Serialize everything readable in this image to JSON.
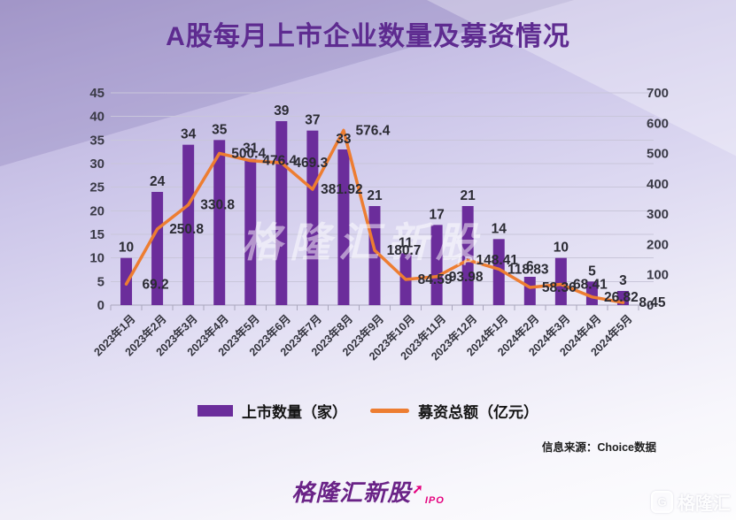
{
  "title": "A股每月上市企业数量及募资情况",
  "source_note": "信息来源：Choice数据",
  "watermarks": {
    "center_text": "格隆汇新股",
    "center_sub": "IPO",
    "corner_icon": "G",
    "corner_text": "格隆汇"
  },
  "footer": {
    "brand": "格隆汇新股",
    "arrow_icon": "➚",
    "brand_sub": "IPO"
  },
  "colors": {
    "bar": "#6B2D9B",
    "line": "#ED7D31",
    "title": "#5E2B90",
    "accent_pink": "#E4017E"
  },
  "chart_data": {
    "type": "bar+line",
    "title": "A股每月上市企业数量及募资情况",
    "categories": [
      "2023年1月",
      "2023年2月",
      "2023年3月",
      "2023年4月",
      "2023年5月",
      "2023年6月",
      "2023年7月",
      "2023年8月",
      "2023年9月",
      "2023年10月",
      "2023年11月",
      "2023年12月",
      "2024年1月",
      "2024年2月",
      "2024年3月",
      "2024年4月",
      "2024年5月"
    ],
    "series": [
      {
        "name": "上市数量（家）",
        "type": "bar",
        "axis": "left",
        "color": "#6B2D9B",
        "values": [
          10,
          24,
          34,
          35,
          31,
          39,
          37,
          33,
          21,
          11,
          17,
          21,
          14,
          6,
          10,
          5,
          3
        ]
      },
      {
        "name": "募资总额（亿元）",
        "type": "line",
        "axis": "right",
        "color": "#ED7D31",
        "values": [
          69.2,
          250.8,
          330.8,
          500.4,
          476.4,
          469.3,
          381.92,
          576.4,
          180.7,
          84.59,
          93.98,
          148.41,
          118.83,
          58.36,
          68.41,
          26.82,
          8.45
        ]
      }
    ],
    "left_axis": {
      "min": 0,
      "max": 45,
      "step": 5
    },
    "right_axis": {
      "min": 0,
      "max": 700,
      "step": 100
    },
    "grid": true,
    "legend_position": "bottom",
    "x_tick_rotation": 45
  }
}
